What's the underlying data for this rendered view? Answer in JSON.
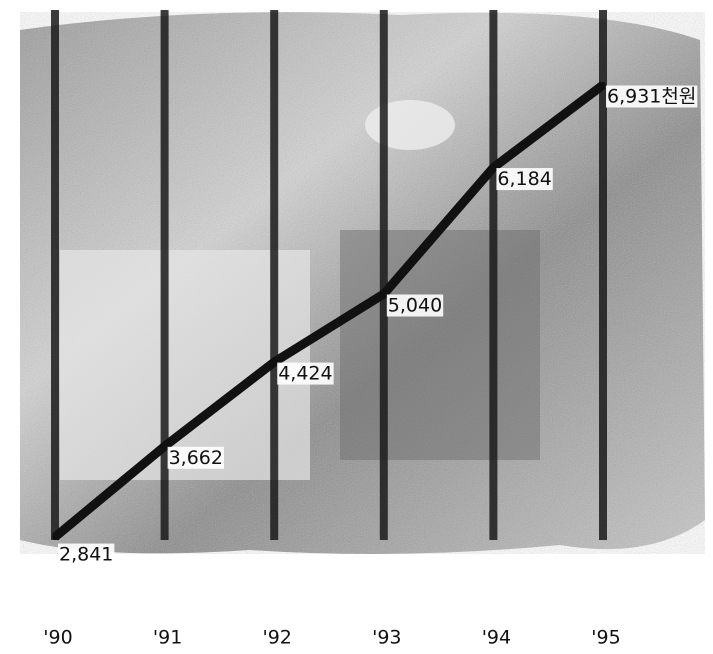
{
  "chart_data": {
    "type": "line",
    "categories": [
      "'90",
      "'91",
      "'92",
      "'93",
      "'94",
      "'95"
    ],
    "values": [
      2841,
      3662,
      4424,
      5040,
      6184,
      6931
    ],
    "value_labels": [
      "2,841",
      "3,662",
      "4,424",
      "5,040",
      "6,184",
      "6,931천원"
    ],
    "color": "#111111",
    "ylim": [
      2000,
      7700
    ]
  }
}
